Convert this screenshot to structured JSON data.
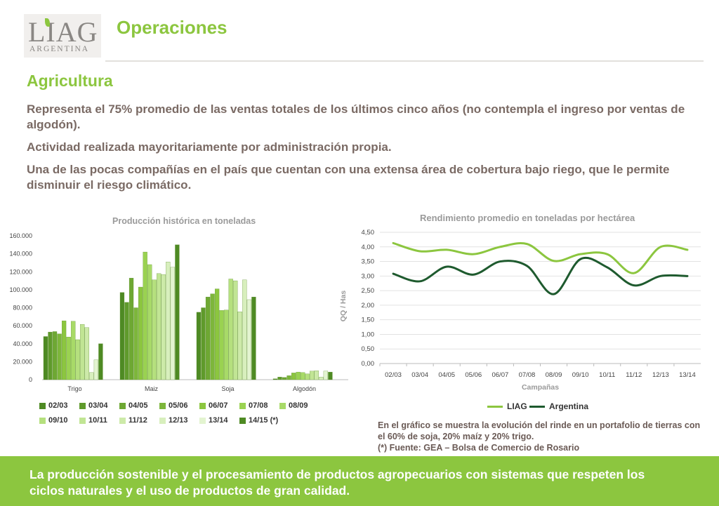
{
  "header": {
    "logo_text": "LIAG",
    "logo_subtext": "ARGENTINA",
    "title": "Operaciones"
  },
  "section": {
    "heading": "Agricultura",
    "paragraphs": [
      "Representa el 75% promedio de las ventas totales de los últimos cinco años (no contempla el ingreso por ventas de algodón).",
      "Actividad realizada mayoritariamente por administración propia.",
      "Una de las pocas compañías en el país que cuentan con una extensa área de cobertura bajo riego, que le permite disminuir el riesgo climático."
    ]
  },
  "note": {
    "line1": "En el gráfico se muestra la evolución del rinde en un portafolio de tierras con el 60% de soja, 20% maíz y 20% trigo.",
    "line2": "(*) Fuente: GEA – Bolsa de Comercio de Rosario"
  },
  "footer": {
    "text": "La producción sostenible y el procesamiento de productos agropecuarios con sistemas que respeten los ciclos naturales y el uso de productos de gran calidad."
  },
  "colors": {
    "brand_green": "#8cc63f",
    "liag_line": "#8cc63f",
    "argentina_line": "#1e5a2e",
    "bar_shades": [
      "#4e8a23",
      "#5f9a2b",
      "#6ea833",
      "#7db63b",
      "#8cc63f",
      "#9ad251",
      "#a8da68",
      "#b5e07e",
      "#c1e594",
      "#cdeaa9",
      "#d8efbd",
      "#e3f4d0"
    ]
  },
  "chart_data": [
    {
      "type": "bar",
      "title": "Producción histórica en toneladas",
      "categories": [
        "Trigo",
        "Maiz",
        "Soja",
        "Algodón"
      ],
      "ylim": [
        0,
        160000
      ],
      "yticks": [
        "0",
        "20.000",
        "40.000",
        "60.000",
        "80.000",
        "100.000",
        "120.000",
        "140.000",
        "160.000"
      ],
      "legend_position": "bottom",
      "series": [
        {
          "name": "02/03",
          "values": [
            48000,
            97000,
            75000,
            1000
          ]
        },
        {
          "name": "03/04",
          "values": [
            53000,
            86000,
            80000,
            3000
          ]
        },
        {
          "name": "04/05",
          "values": [
            53500,
            113000,
            92000,
            2500
          ]
        },
        {
          "name": "05/06",
          "values": [
            51000,
            80000,
            95500,
            4500
          ]
        },
        {
          "name": "06/07",
          "values": [
            65500,
            103000,
            101000,
            7500
          ]
        },
        {
          "name": "07/08",
          "values": [
            47500,
            142000,
            77000,
            8500
          ]
        },
        {
          "name": "08/09",
          "values": [
            65000,
            128000,
            77500,
            8000
          ]
        },
        {
          "name": "09/10",
          "values": [
            44500,
            111000,
            112000,
            6500
          ]
        },
        {
          "name": "10/11",
          "values": [
            61500,
            118000,
            110000,
            9500
          ]
        },
        {
          "name": "11/12",
          "values": [
            58000,
            117000,
            75500,
            10000
          ]
        },
        {
          "name": "12/13",
          "values": [
            8000,
            131000,
            111000,
            3000
          ]
        },
        {
          "name": "13/14",
          "values": [
            22000,
            125000,
            89000,
            9500
          ]
        },
        {
          "name": "14/15 (*)",
          "values": [
            40000,
            150000,
            92000,
            8500
          ]
        }
      ]
    },
    {
      "type": "line",
      "title": "Rendimiento promedio en toneladas por hectárea",
      "xlabel": "Campañas",
      "ylabel": "QQ / Has",
      "x": [
        "02/03",
        "03/04",
        "04/05",
        "05/06",
        "06/07",
        "07/08",
        "08/09",
        "09/10",
        "10/11",
        "11/12",
        "12/13",
        "13/14"
      ],
      "ylim": [
        0,
        4.5
      ],
      "yticks": [
        "0,00",
        "0,50",
        "1,00",
        "1,50",
        "2,00",
        "2,50",
        "3,00",
        "3,50",
        "4,00",
        "4,50"
      ],
      "legend_position": "bottom",
      "series": [
        {
          "name": "LIAG",
          "values": [
            4.13,
            3.85,
            3.9,
            3.75,
            4.0,
            4.1,
            3.52,
            3.75,
            3.75,
            3.1,
            4.0,
            3.9
          ]
        },
        {
          "name": "Argentina",
          "values": [
            3.08,
            2.82,
            3.32,
            3.05,
            3.5,
            3.35,
            2.38,
            3.58,
            3.3,
            2.68,
            3.0,
            3.0
          ]
        }
      ]
    }
  ]
}
